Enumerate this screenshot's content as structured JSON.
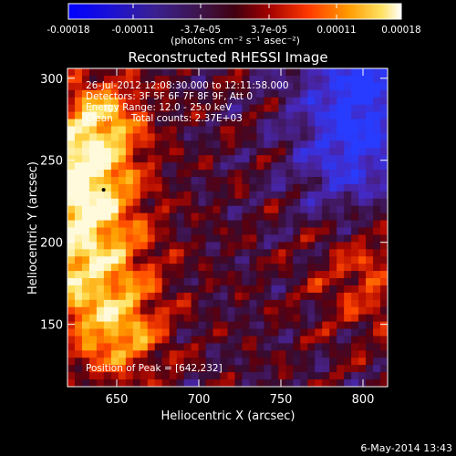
{
  "chart_data": {
    "type": "heatmap",
    "title": "Reconstructed RHESSI Image",
    "xlabel": "Heliocentric X (arcsec)",
    "ylabel": "Heliocentric Y (arcsec)",
    "xlim": [
      620,
      815
    ],
    "ylim": [
      112,
      306
    ],
    "x_ticks": [
      650,
      700,
      750,
      800
    ],
    "y_ticks": [
      150,
      200,
      250,
      300
    ],
    "colorbar": {
      "range": [
        -0.00018,
        0.00018
      ],
      "tick_labels": [
        "-0.00018",
        "-0.00011",
        "-3.7e-05",
        "3.7e-05",
        "0.00011",
        "0.00018"
      ],
      "tick_values": [
        -0.00018,
        -0.00011,
        -3.7e-05,
        3.7e-05,
        0.00011,
        0.00018
      ],
      "unit_label": "(photons cm⁻² s⁻¹ asec⁻²)"
    },
    "annotations": [
      "26-Jul-2012 12:08:30.000 to 12:11:58.000",
      "Detectors: 3F 5F 6F 7F 8F 9F, Att 0",
      "Energy Range: 12.0 - 25.0 keV",
      "Clean      Total counts: 2.37E+03"
    ],
    "peak_label": "Position of Peak = [642,232]",
    "peak_position": [
      642,
      232
    ],
    "footer_date": "6-May-2014 13:43"
  }
}
